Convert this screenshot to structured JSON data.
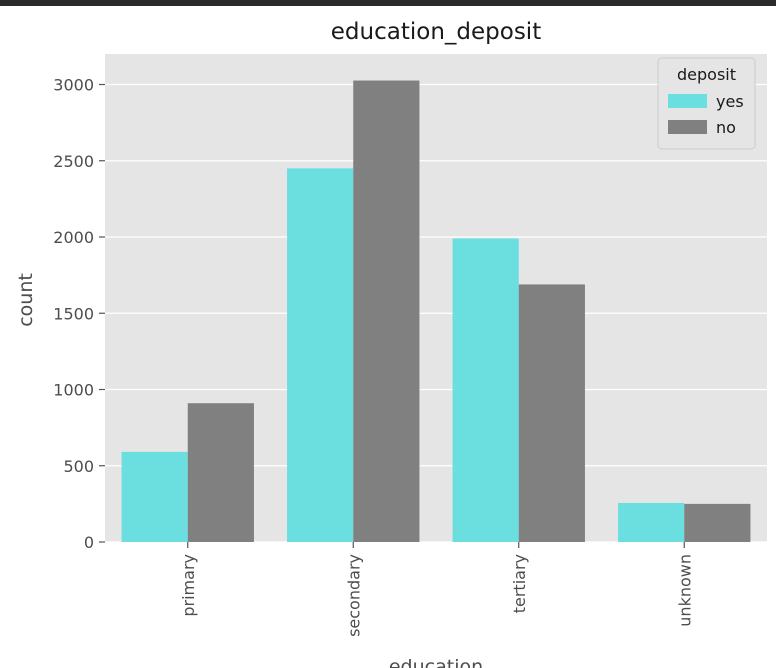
{
  "chart_data": {
    "type": "bar",
    "title": "education_deposit",
    "xlabel": "education",
    "ylabel": "count",
    "categories": [
      "primary",
      "secondary",
      "tertiary",
      "unknown"
    ],
    "series": [
      {
        "name": "yes",
        "values": [
          591,
          2450,
          1990,
          256
        ],
        "color": "#6bdedf"
      },
      {
        "name": "no",
        "values": [
          910,
          3026,
          1689,
          250
        ],
        "color": "#808080"
      }
    ],
    "ylim": [
      0,
      3200
    ],
    "yticks": [
      0,
      500,
      1000,
      1500,
      2000,
      2500,
      3000
    ],
    "grid": true,
    "legend": {
      "title": "deposit",
      "placement": "top-right"
    }
  }
}
